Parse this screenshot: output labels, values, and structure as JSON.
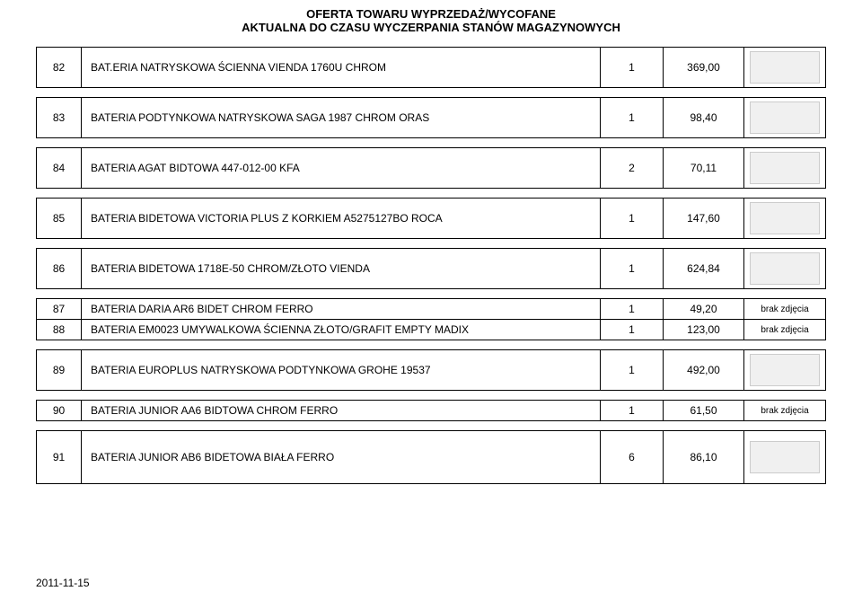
{
  "header": {
    "line1": "OFERTA TOWARU WYPRZEDAŻ/WYCOFANE",
    "line2": "AKTUALNA DO CZASU WYCZERPANIA STANÓW MAGAZYNOWYCH"
  },
  "rows": [
    {
      "num": "82",
      "name": "BAT.ERIA NATRYSKOWA ŚCIENNA VIENDA 1760U CHROM",
      "qty": "1",
      "price": "369,00",
      "img": "thumb"
    },
    {
      "num": "83",
      "name": "BATERIA PODTYNKOWA NATRYSKOWA SAGA 1987 CHROM ORAS",
      "qty": "1",
      "price": "98,40",
      "img": "thumb"
    },
    {
      "num": "84",
      "name": "BATERIA AGAT BIDTOWA 447-012-00 KFA",
      "qty": "2",
      "price": "70,11",
      "img": "thumb"
    },
    {
      "num": "85",
      "name": "BATERIA BIDETOWA VICTORIA PLUS Z KORKIEM A5275127BO ROCA",
      "qty": "1",
      "price": "147,60",
      "img": "thumb"
    },
    {
      "num": "86",
      "name": "BATERIA BIDETOWA 1718E-50 CHROM/ZŁOTO VIENDA",
      "qty": "1",
      "price": "624,84",
      "img": "thumb"
    }
  ],
  "pairRows": [
    {
      "num": "87",
      "name": "BATERIA DARIA AR6 BIDET CHROM FERRO",
      "qty": "1",
      "price": "49,20",
      "img": "brak zdjęcia"
    },
    {
      "num": "88",
      "name": "BATERIA EM0023 UMYWALKOWA ŚCIENNA ZŁOTO/GRAFIT EMPTY MADIX",
      "qty": "1",
      "price": "123,00",
      "img": "brak zdjęcia"
    }
  ],
  "afterRows": [
    {
      "num": "89",
      "name": "BATERIA EUROPLUS NATRYSKOWA PODTYNKOWA GROHE 19537",
      "qty": "1",
      "price": "492,00",
      "img": "thumb"
    },
    {
      "num": "90",
      "name": "BATERIA JUNIOR AA6 BIDTOWA CHROM FERRO",
      "qty": "1",
      "price": "61,50",
      "img": "brak zdjęcia",
      "short": true
    },
    {
      "num": "91",
      "name": "BATERIA JUNIOR AB6 BIDETOWA BIAŁA FERRO",
      "qty": "6",
      "price": "86,10",
      "img": "thumb",
      "tall": true
    }
  ],
  "footer": {
    "date": "2011-11-15"
  },
  "labels": {
    "no_image": "brak zdjęcia"
  }
}
